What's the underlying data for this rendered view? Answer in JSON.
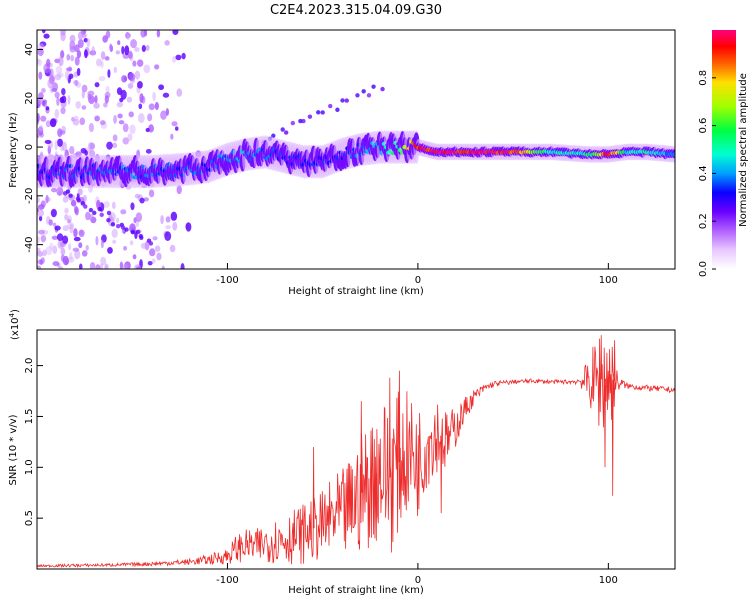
{
  "figure": {
    "title": "C2E4.2023.315.04.09.G30"
  },
  "colors": {
    "snr_line": "#ee2c2c",
    "axes": "#000000",
    "colormap_stops": [
      "#ffffff",
      "#e8c8ff",
      "#b060ff",
      "#6a00ff",
      "#0a00ff",
      "#00a0ff",
      "#00ffd0",
      "#00ff40",
      "#a0ff00",
      "#ffe000",
      "#ff6000",
      "#ff0000",
      "#ff0080"
    ]
  },
  "chart_data": [
    {
      "type": "heatmap",
      "title": "",
      "xlabel": "Height of straight line (km)",
      "ylabel": "Frequency (Hz)",
      "xlim": [
        -200,
        135
      ],
      "ylim": [
        -50,
        48
      ],
      "xticks": [
        -100,
        0,
        100
      ],
      "yticks": [
        -40,
        -20,
        0,
        20,
        40
      ],
      "colorbar": {
        "label": "Normalized spectral amplitude",
        "range": [
          0,
          1
        ],
        "ticks": [
          0.0,
          0.2,
          0.4,
          0.6,
          0.8
        ]
      },
      "ridge": {
        "description_points_x": [
          -200,
          -180,
          -160,
          -140,
          -120,
          -110,
          -100,
          -90,
          -80,
          -70,
          -60,
          -50,
          -40,
          -30,
          -20,
          -10,
          0,
          10,
          30,
          50,
          70,
          90,
          100,
          110,
          120,
          135
        ],
        "description_points_freq": [
          -10,
          -10,
          -10,
          -10,
          -9,
          -8,
          -5,
          -3,
          -2,
          -4,
          -6,
          -6,
          -3,
          -1,
          0,
          0,
          0,
          -2,
          -2,
          -2,
          -2,
          -3,
          -3,
          -2,
          -2,
          -3
        ],
        "peak_amplitude": [
          0.35,
          0.38,
          0.4,
          0.4,
          0.38,
          0.38,
          0.4,
          0.45,
          0.4,
          0.35,
          0.35,
          0.35,
          0.35,
          0.4,
          0.45,
          0.6,
          0.95,
          1.0,
          1.0,
          0.95,
          0.5,
          0.55,
          0.95,
          0.5,
          0.55,
          0.4
        ]
      },
      "secondary_features": [
        {
          "x_start": -185,
          "y_start": -18,
          "x_end": -140,
          "y_end": -40
        },
        {
          "x_start": -95,
          "y_start": -2,
          "x_end": -20,
          "y_end": 25
        }
      ]
    },
    {
      "type": "line",
      "title": "",
      "xlabel": "Height of straight line (km)",
      "ylabel": "SNR (10 * v/v)",
      "y_multiplier_label": "(x10",
      "y_multiplier_exp": "4",
      "xlim": [
        -200,
        135
      ],
      "ylim": [
        0,
        23500
      ],
      "xticks": [
        -100,
        0,
        100
      ],
      "yticks": [
        5000,
        10000,
        15000,
        20000
      ],
      "ytick_labels": [
        "0.5",
        "1.0",
        "1.5",
        "2.0"
      ],
      "series": [
        {
          "x": [
            -200,
            -180,
            -160,
            -140,
            -120,
            -110,
            -100,
            -95,
            -90,
            -85,
            -80,
            -75,
            -70,
            -65,
            -60,
            -55,
            -50,
            -45,
            -40,
            -35,
            -30,
            -25,
            -20,
            -15,
            -10,
            -5,
            0,
            5,
            10,
            15,
            20,
            25,
            30,
            35,
            40,
            50,
            60,
            70,
            80,
            85,
            90,
            95,
            100,
            105,
            110,
            120,
            135
          ],
          "y": [
            300,
            350,
            400,
            500,
            700,
            900,
            1300,
            2000,
            2400,
            2200,
            2600,
            2800,
            3000,
            3200,
            3500,
            4000,
            4200,
            5000,
            5200,
            6200,
            7500,
            8500,
            10000,
            9000,
            10500,
            11500,
            10500,
            12500,
            13500,
            12500,
            14000,
            15800,
            17000,
            17800,
            18200,
            18400,
            18500,
            18400,
            18400,
            18500,
            18400,
            18600,
            18800,
            18300,
            18000,
            17800,
            17600
          ],
          "noise_amplitude": [
            100,
            150,
            150,
            200,
            300,
            500,
            800,
            1500,
            1500,
            1700,
            2000,
            2200,
            2500,
            2800,
            3000,
            3200,
            3500,
            4000,
            4500,
            5000,
            6000,
            6500,
            7000,
            8000,
            7000,
            6000,
            5500,
            4500,
            4000,
            3000,
            2000,
            1200,
            700,
            400,
            300,
            200,
            200,
            200,
            200,
            400,
            2500,
            5000,
            6000,
            800,
            300,
            300,
            300
          ],
          "spikes": [
            [
              -10,
              19500
            ],
            [
              -15,
              18800
            ],
            [
              -30,
              16500
            ],
            [
              -55,
              12000
            ],
            [
              12,
              5500
            ],
            [
              -22,
              5000
            ],
            [
              96,
              23000
            ],
            [
              103,
              22500
            ],
            [
              98,
              10000
            ],
            [
              102,
              7200
            ]
          ]
        }
      ]
    }
  ]
}
